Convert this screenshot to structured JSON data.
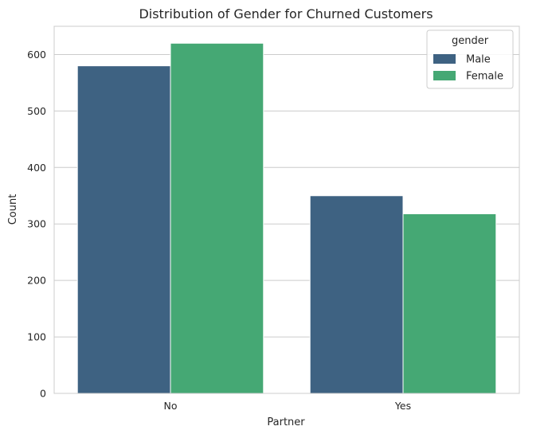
{
  "chart_data": {
    "type": "bar",
    "title": "Distribution of Gender for Churned Customers",
    "xlabel": "Partner",
    "ylabel": "Count",
    "categories": [
      "No",
      "Yes"
    ],
    "series": [
      {
        "name": "Male",
        "values": [
          580,
          350
        ],
        "color": "#3e6282"
      },
      {
        "name": "Female",
        "values": [
          620,
          318
        ],
        "color": "#45a874"
      }
    ],
    "ylim": [
      0,
      650
    ],
    "yticks": [
      0,
      100,
      200,
      300,
      400,
      500,
      600
    ],
    "grid": true,
    "legend": {
      "title": "gender",
      "placement": "top-right"
    }
  }
}
